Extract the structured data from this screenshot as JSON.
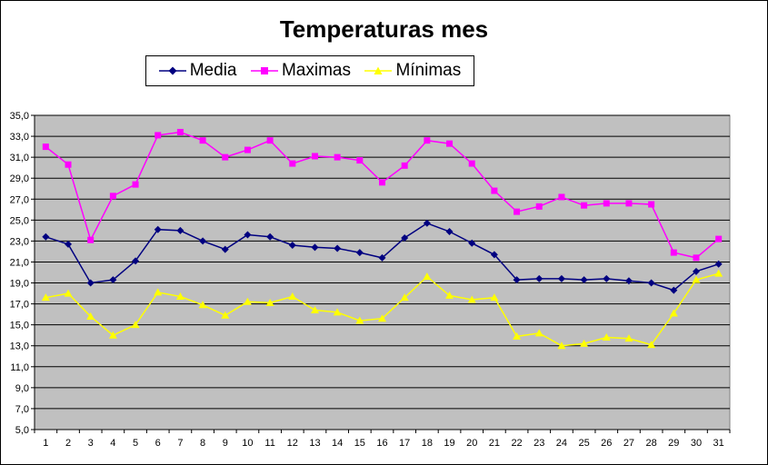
{
  "chart_data": {
    "type": "line",
    "title": "Temperaturas mes",
    "xlabel": "",
    "ylabel": "",
    "categories": [
      "1",
      "2",
      "3",
      "4",
      "5",
      "6",
      "7",
      "8",
      "9",
      "10",
      "11",
      "12",
      "13",
      "14",
      "15",
      "16",
      "17",
      "18",
      "19",
      "20",
      "21",
      "22",
      "23",
      "24",
      "25",
      "26",
      "27",
      "28",
      "29",
      "30",
      "31"
    ],
    "ylim": [
      5,
      35
    ],
    "y_step": 2,
    "y_tick_labels": [
      "5,0",
      "7,0",
      "9,0",
      "11,0",
      "13,0",
      "15,0",
      "17,0",
      "19,0",
      "21,0",
      "23,0",
      "25,0",
      "27,0",
      "29,0",
      "31,0",
      "33,0",
      "35,0"
    ],
    "grid": true,
    "legend_position": "top-left",
    "plot_background": "#c0c0c0",
    "series": [
      {
        "name": "Media",
        "color": "#000080",
        "marker": "diamond",
        "values": [
          23.4,
          22.7,
          19.0,
          19.3,
          21.1,
          24.1,
          24.0,
          23.0,
          22.2,
          23.6,
          23.4,
          22.6,
          22.4,
          22.3,
          21.9,
          21.4,
          23.3,
          24.7,
          23.9,
          22.8,
          21.7,
          19.3,
          19.4,
          19.4,
          19.3,
          19.4,
          19.2,
          19.0,
          18.3,
          20.1,
          20.8
        ]
      },
      {
        "name": "Maximas",
        "color": "#ff00ff",
        "marker": "square",
        "values": [
          32.0,
          30.3,
          23.1,
          27.3,
          28.4,
          33.1,
          33.4,
          32.6,
          31.0,
          31.7,
          32.6,
          30.4,
          31.1,
          31.0,
          30.7,
          28.6,
          30.2,
          32.6,
          32.3,
          30.4,
          27.8,
          25.8,
          26.3,
          27.2,
          26.4,
          26.6,
          26.6,
          26.5,
          21.9,
          21.4,
          23.2
        ]
      },
      {
        "name": "Mínimas",
        "color": "#ffff00",
        "marker": "triangle",
        "values": [
          17.6,
          18.0,
          15.8,
          14.0,
          15.0,
          18.1,
          17.7,
          16.9,
          15.9,
          17.2,
          17.1,
          17.7,
          16.4,
          16.2,
          15.4,
          15.6,
          17.6,
          19.6,
          17.8,
          17.4,
          17.6,
          13.9,
          14.2,
          13.0,
          13.2,
          13.8,
          13.7,
          13.1,
          16.1,
          19.3,
          19.9
        ]
      }
    ]
  }
}
